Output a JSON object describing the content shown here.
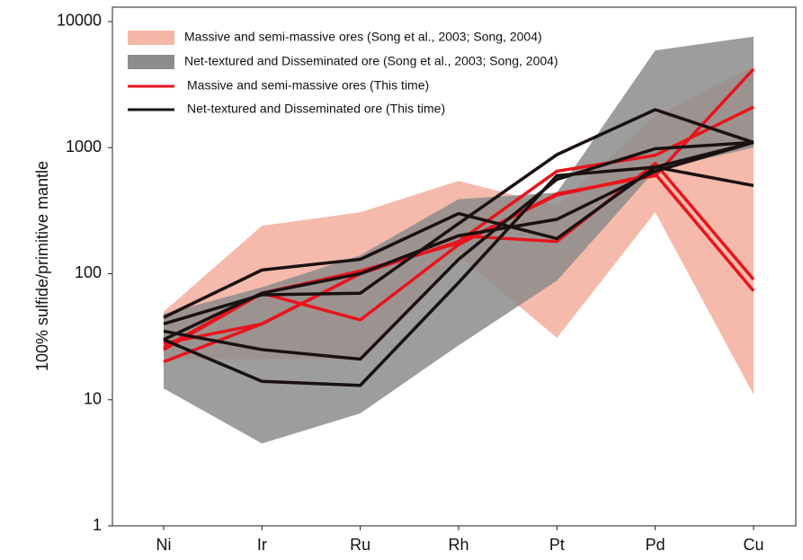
{
  "chart_data": {
    "type": "spider",
    "y_label": "100% sulfide/primitive mantle",
    "categories": [
      "Ni",
      "Ir",
      "Ru",
      "Rh",
      "Pt",
      "Pd",
      "Cu"
    ],
    "log_scale": true,
    "ylim": [
      1,
      13000
    ],
    "yticks": [
      1,
      10,
      100,
      1000,
      10000
    ],
    "bands": [
      {
        "name": "Massive and semi-massive ores (Song et al., 2003; Song, 2004)",
        "color": "#f4b6a6",
        "upper": [
          50,
          240,
          307,
          545,
          345,
          1780,
          4400
        ],
        "lower": [
          21,
          21,
          21,
          140,
          31,
          307,
          11
        ]
      },
      {
        "name": "Net-textured and Disseminated ore (Song et al., 2003; Song, 2004)",
        "color": "#8c8c8c",
        "upper": [
          48,
          78,
          140,
          390,
          440,
          5900,
          7600
        ],
        "lower": [
          12.3,
          4.5,
          7.8,
          27,
          88,
          660,
          1000
        ]
      }
    ],
    "line_groups": [
      {
        "name": "Massive and semi-massive ores (This time)",
        "color": "#e8141c",
        "lines": [
          [
            20,
            40,
            100,
            180,
            650,
            870,
            2100
          ],
          [
            25,
            70,
            43,
            170,
            430,
            600,
            4200
          ],
          [
            28,
            40,
            100,
            200,
            180,
            750,
            90
          ],
          [
            26,
            70,
            105,
            175,
            420,
            620,
            73
          ]
        ]
      },
      {
        "name": "Net-textured and Disseminated ore (This time)",
        "color": "#1a1111",
        "lines": [
          [
            45,
            107,
            130,
            300,
            190,
            700,
            1100
          ],
          [
            40,
            68,
            70,
            250,
            880,
            2000,
            1100
          ],
          [
            35,
            25,
            21,
            130,
            560,
            980,
            1100
          ],
          [
            30,
            14,
            13,
            85,
            600,
            700,
            500
          ],
          [
            30,
            70,
            100,
            200,
            270,
            650,
            1100
          ]
        ]
      }
    ]
  }
}
